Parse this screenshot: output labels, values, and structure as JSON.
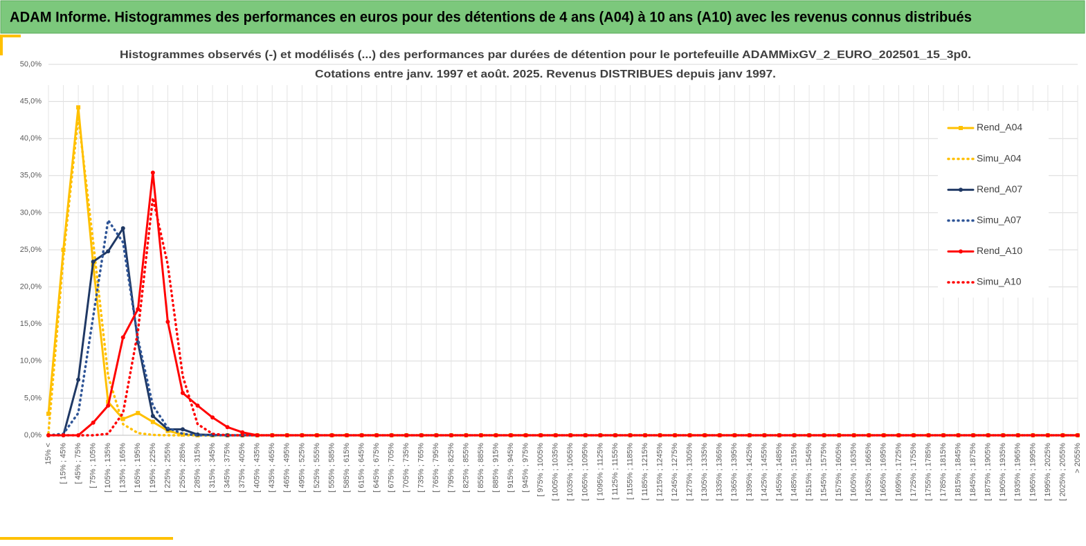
{
  "header": {
    "title": "ADAM Informe. Histogrammes des performances en euros pour des détentions de 4 ans (A04) à 10 ans (A10) avec les revenus connus distribués"
  },
  "chart_data": {
    "type": "line",
    "title": "Histogrammes observés (-) et modélisés (...) des performances par durées de détention pour le portefeuille ADAMMixGV_2_EURO_202501_15_3p0.",
    "subtitle": "Cotations entre janv. 1997 et août. 2025. Revenus DISTRIBUES depuis janv 1997.",
    "categories": [
      "15% <",
      "[ 15% ; 45%",
      "[ 45% ; 75%",
      "[ 75% ; 105%",
      "[ 105% ; 135%",
      "[ 135% ; 165%",
      "[ 165% ; 195%",
      "[ 195% ; 225%",
      "[ 225% ; 255%",
      "[ 255% ; 285%",
      "[ 285% ; 315%",
      "[ 315% ; 345%",
      "[ 345% ; 375%",
      "[ 375% ; 405%",
      "[ 405% ; 435%",
      "[ 435% ; 465%",
      "[ 465% ; 495%",
      "[ 495% ; 525%",
      "[ 525% ; 555%",
      "[ 555% ; 585%",
      "[ 585% ; 615%",
      "[ 615% ; 645%",
      "[ 645% ; 675%",
      "[ 675% ; 705%",
      "[ 705% ; 735%",
      "[ 735% ; 765%",
      "[ 765% ; 795%",
      "[ 795% ; 825%",
      "[ 825% ; 855%",
      "[ 855% ; 885%",
      "[ 885% ; 915%",
      "[ 915% ; 945%",
      "[ 945% ; 975%",
      "[ 975% ; 1005%",
      "[ 1005% ; 1035%",
      "[ 1035% ; 1065%",
      "[ 1065% ; 1095%",
      "[ 1095% ; 1125%",
      "[ 1125% ; 1155%",
      "[ 1155% ; 1185%",
      "[ 1185% ; 1215%",
      "[ 1215% ; 1245%",
      "[ 1245% ; 1275%",
      "[ 1275% ; 1305%",
      "[ 1305% ; 1335%",
      "[ 1335% ; 1365%",
      "[ 1365% ; 1395%",
      "[ 1395% ; 1425%",
      "[ 1425% ; 1455%",
      "[ 1455% ; 1485%",
      "[ 1485% ; 1515%",
      "[ 1515% ; 1545%",
      "[ 1545% ; 1575%",
      "[ 1575% ; 1605%",
      "[ 1605% ; 1635%",
      "[ 1635% ; 1665%",
      "[ 1665% ; 1695%",
      "[ 1695% ; 1725%",
      "[ 1725% ; 1755%",
      "[ 1755% ; 1785%",
      "[ 1785% ; 1815%",
      "[ 1815% ; 1845%",
      "[ 1845% ; 1875%",
      "[ 1875% ; 1905%",
      "[ 1905% ; 1935%",
      "[ 1935% ; 1965%",
      "[ 1965% ; 1995%",
      "[ 1995% ; 2025%",
      "[ 2025% ; 2055%",
      "> 2055%"
    ],
    "series": [
      {
        "name": "Rend_A04",
        "color": "#ffc000",
        "dashed": false,
        "marker": "square",
        "values": [
          2.9,
          25,
          44.2,
          23,
          4.5,
          2.2,
          3.0,
          1.8,
          0.6,
          0.1,
          0,
          0,
          0,
          0,
          0,
          0,
          0,
          0,
          0,
          0,
          0,
          0,
          0,
          0,
          0,
          0,
          0,
          0,
          0,
          0,
          0,
          0,
          0,
          0,
          0,
          0,
          0,
          0,
          0,
          0,
          0,
          0,
          0,
          0,
          0,
          0,
          0,
          0,
          0,
          0,
          0,
          0,
          0,
          0,
          0,
          0,
          0,
          0,
          0,
          0,
          0,
          0,
          0,
          0,
          0,
          0,
          0,
          0,
          0,
          0
        ]
      },
      {
        "name": "Simu_A04",
        "color": "#ffc000",
        "dashed": true,
        "marker": null,
        "values": [
          0.3,
          24,
          43,
          26,
          8,
          1.5,
          0.3,
          0.05,
          0,
          0,
          0,
          0,
          0,
          0,
          0,
          0,
          0,
          0,
          0,
          0,
          0,
          0,
          0,
          0,
          0,
          0,
          0,
          0,
          0,
          0,
          0,
          0,
          0,
          0,
          0,
          0,
          0,
          0,
          0,
          0,
          0,
          0,
          0,
          0,
          0,
          0,
          0,
          0,
          0,
          0,
          0,
          0,
          0,
          0,
          0,
          0,
          0,
          0,
          0,
          0,
          0,
          0,
          0,
          0,
          0,
          0,
          0,
          0,
          0,
          0
        ]
      },
      {
        "name": "Rend_A07",
        "color": "#1f3864",
        "dashed": false,
        "marker": "circle",
        "values": [
          0,
          0,
          7.5,
          23.4,
          24.8,
          27.9,
          12.5,
          2.6,
          0.8,
          0.8,
          0.1,
          0.05,
          0,
          0,
          0,
          0,
          0,
          0,
          0,
          0,
          0,
          0,
          0,
          0,
          0,
          0,
          0,
          0,
          0,
          0,
          0,
          0,
          0,
          0,
          0,
          0,
          0,
          0,
          0,
          0,
          0,
          0,
          0,
          0,
          0,
          0,
          0,
          0,
          0,
          0,
          0,
          0,
          0,
          0,
          0,
          0,
          0,
          0,
          0,
          0,
          0,
          0,
          0,
          0,
          0,
          0,
          0,
          0,
          0,
          0
        ]
      },
      {
        "name": "Simu_A07",
        "color": "#2f5597",
        "dashed": true,
        "marker": null,
        "values": [
          0,
          0.2,
          3,
          16,
          29,
          26,
          13,
          4,
          1,
          0.2,
          0,
          0,
          0,
          0,
          0,
          0,
          0,
          0,
          0,
          0,
          0,
          0,
          0,
          0,
          0,
          0,
          0,
          0,
          0,
          0,
          0,
          0,
          0,
          0,
          0,
          0,
          0,
          0,
          0,
          0,
          0,
          0,
          0,
          0,
          0,
          0,
          0,
          0,
          0,
          0,
          0,
          0,
          0,
          0,
          0,
          0,
          0,
          0,
          0,
          0,
          0,
          0,
          0,
          0,
          0,
          0,
          0,
          0,
          0,
          0
        ]
      },
      {
        "name": "Rend_A10",
        "color": "#ff0000",
        "dashed": false,
        "marker": "circle",
        "values": [
          0,
          0,
          0,
          1.7,
          4.0,
          13.2,
          17.0,
          35.4,
          15.3,
          5.7,
          4.0,
          2.4,
          1.1,
          0.4,
          0,
          0,
          0,
          0,
          0,
          0,
          0,
          0,
          0,
          0,
          0,
          0,
          0,
          0,
          0,
          0,
          0,
          0,
          0,
          0,
          0,
          0,
          0,
          0,
          0,
          0,
          0,
          0,
          0,
          0,
          0,
          0,
          0,
          0,
          0,
          0,
          0,
          0,
          0,
          0,
          0,
          0,
          0,
          0,
          0,
          0,
          0,
          0,
          0,
          0,
          0,
          0,
          0,
          0,
          0,
          0
        ]
      },
      {
        "name": "Simu_A10",
        "color": "#ff0000",
        "dashed": true,
        "marker": null,
        "values": [
          0,
          0,
          0,
          0,
          0.2,
          3,
          14,
          32,
          23,
          8,
          1.5,
          0.2,
          0,
          0,
          0,
          0,
          0,
          0,
          0,
          0,
          0,
          0,
          0,
          0,
          0,
          0,
          0,
          0,
          0,
          0,
          0,
          0,
          0,
          0,
          0,
          0,
          0,
          0,
          0,
          0,
          0,
          0,
          0,
          0,
          0,
          0,
          0,
          0,
          0,
          0,
          0,
          0,
          0,
          0,
          0,
          0,
          0,
          0,
          0,
          0,
          0,
          0,
          0,
          0,
          0,
          0,
          0,
          0,
          0,
          0
        ]
      }
    ],
    "ylim": [
      0,
      50
    ],
    "yticks": [
      {
        "value": 0,
        "label": "0,0%"
      },
      {
        "value": 5,
        "label": "5,0%"
      },
      {
        "value": 10,
        "label": "10,0%"
      },
      {
        "value": 15,
        "label": "15,0%"
      },
      {
        "value": 20,
        "label": "20,0%"
      },
      {
        "value": 25,
        "label": "25,0%"
      },
      {
        "value": 30,
        "label": "30,0%"
      },
      {
        "value": 35,
        "label": "35,0%"
      },
      {
        "value": 40,
        "label": "40,0%"
      },
      {
        "value": 45,
        "label": "45,0%"
      },
      {
        "value": 50,
        "label": "50,0%"
      }
    ],
    "grid": true,
    "legend": "right"
  }
}
